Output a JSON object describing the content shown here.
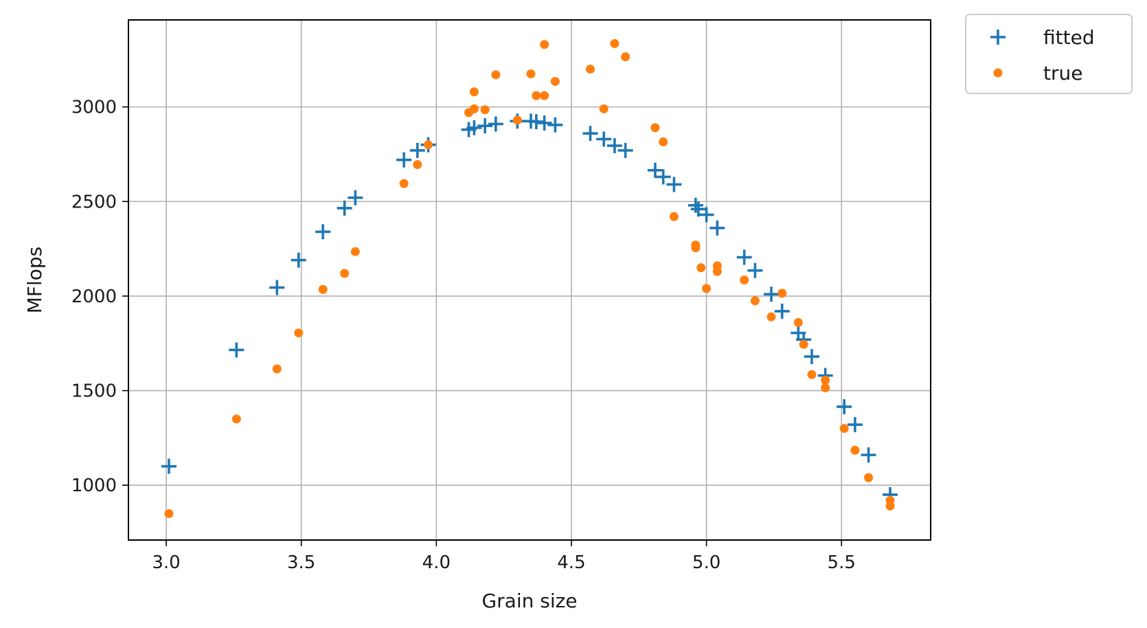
{
  "chart_data": {
    "type": "scatter",
    "title": "",
    "xlabel": "Grain size",
    "ylabel": "MFlops",
    "xlim": [
      2.86,
      5.83
    ],
    "ylim": [
      710,
      3460
    ],
    "xticks": [
      3.0,
      3.5,
      4.0,
      4.5,
      5.0,
      5.5
    ],
    "xtick_labels": [
      "3.0",
      "3.5",
      "4.0",
      "4.5",
      "5.0",
      "5.5"
    ],
    "yticks": [
      1000,
      1500,
      2000,
      2500,
      3000
    ],
    "ytick_labels": [
      "1000",
      "1500",
      "2000",
      "2500",
      "3000"
    ],
    "grid": true,
    "legend_position": "outside top-right",
    "series": [
      {
        "name": "fitted",
        "marker": "plus",
        "color": "#1f77b4",
        "points": [
          [
            3.01,
            1100
          ],
          [
            3.26,
            1715
          ],
          [
            3.41,
            2045
          ],
          [
            3.49,
            2190
          ],
          [
            3.58,
            2340
          ],
          [
            3.66,
            2465
          ],
          [
            3.7,
            2520
          ],
          [
            3.88,
            2720
          ],
          [
            3.93,
            2770
          ],
          [
            3.97,
            2800
          ],
          [
            4.12,
            2880
          ],
          [
            4.14,
            2890
          ],
          [
            4.18,
            2900
          ],
          [
            4.22,
            2910
          ],
          [
            4.3,
            2925
          ],
          [
            4.35,
            2925
          ],
          [
            4.37,
            2922
          ],
          [
            4.4,
            2915
          ],
          [
            4.44,
            2905
          ],
          [
            4.57,
            2860
          ],
          [
            4.62,
            2830
          ],
          [
            4.66,
            2795
          ],
          [
            4.7,
            2770
          ],
          [
            4.81,
            2665
          ],
          [
            4.84,
            2630
          ],
          [
            4.88,
            2590
          ],
          [
            4.96,
            2480
          ],
          [
            4.97,
            2460
          ],
          [
            5.0,
            2430
          ],
          [
            5.04,
            2360
          ],
          [
            5.14,
            2205
          ],
          [
            5.18,
            2135
          ],
          [
            5.24,
            2010
          ],
          [
            5.28,
            1920
          ],
          [
            5.34,
            1805
          ],
          [
            5.36,
            1770
          ],
          [
            5.39,
            1680
          ],
          [
            5.44,
            1580
          ],
          [
            5.51,
            1415
          ],
          [
            5.55,
            1320
          ],
          [
            5.6,
            1160
          ],
          [
            5.68,
            950
          ]
        ]
      },
      {
        "name": "true",
        "marker": "dot",
        "color": "#ff7f0e",
        "points": [
          [
            3.01,
            850
          ],
          [
            3.26,
            1350
          ],
          [
            3.41,
            1615
          ],
          [
            3.49,
            1805
          ],
          [
            3.58,
            2035
          ],
          [
            3.66,
            2120
          ],
          [
            3.7,
            2235
          ],
          [
            3.88,
            2595
          ],
          [
            3.93,
            2695
          ],
          [
            3.97,
            2800
          ],
          [
            4.12,
            2970
          ],
          [
            4.14,
            3080
          ],
          [
            4.14,
            2990
          ],
          [
            4.18,
            2985
          ],
          [
            4.22,
            3170
          ],
          [
            4.3,
            2930
          ],
          [
            4.35,
            3175
          ],
          [
            4.37,
            3060
          ],
          [
            4.4,
            3330
          ],
          [
            4.4,
            3060
          ],
          [
            4.44,
            3135
          ],
          [
            4.57,
            3200
          ],
          [
            4.62,
            2990
          ],
          [
            4.66,
            3335
          ],
          [
            4.7,
            3265
          ],
          [
            4.81,
            2890
          ],
          [
            4.84,
            2815
          ],
          [
            4.88,
            2420
          ],
          [
            4.96,
            2255
          ],
          [
            4.96,
            2270
          ],
          [
            4.98,
            2150
          ],
          [
            5.0,
            2040
          ],
          [
            5.04,
            2160
          ],
          [
            5.04,
            2130
          ],
          [
            5.14,
            2085
          ],
          [
            5.18,
            1975
          ],
          [
            5.24,
            1890
          ],
          [
            5.28,
            2015
          ],
          [
            5.34,
            1860
          ],
          [
            5.36,
            1745
          ],
          [
            5.39,
            1585
          ],
          [
            5.44,
            1555
          ],
          [
            5.44,
            1515
          ],
          [
            5.51,
            1300
          ],
          [
            5.55,
            1185
          ],
          [
            5.6,
            1040
          ],
          [
            5.68,
            920
          ],
          [
            5.68,
            890
          ]
        ]
      }
    ]
  }
}
